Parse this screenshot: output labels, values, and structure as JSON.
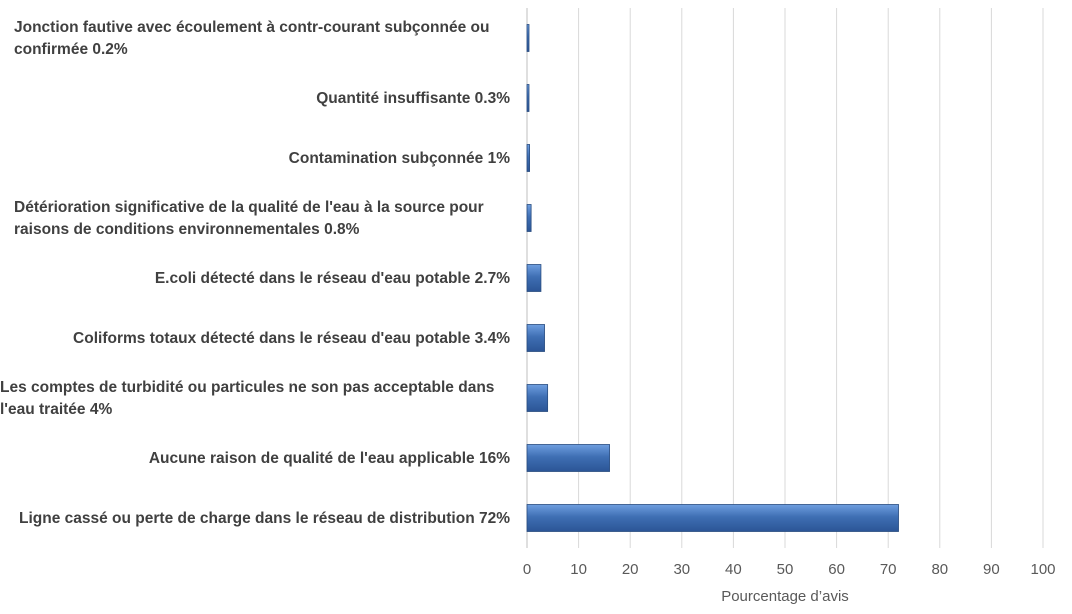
{
  "chart_data": {
    "type": "bar",
    "orientation": "horizontal",
    "categories": [
      [
        "Jonction fautive avec écoulement à contr-courant subçonnée ou",
        "confirmée 0.2%"
      ],
      [
        "Quantité insuffisante 0.3%"
      ],
      [
        "Contamination subçonnée 1%"
      ],
      [
        "Détérioration significative de la qualité de l'eau à la source pour",
        "raisons de conditions environnementales  0.8%"
      ],
      [
        "E.coli détecté dans le réseau d'eau potable 2.7%"
      ],
      [
        "Coliforms totaux détecté dans le réseau d'eau potable  3.4%"
      ],
      [
        "Les comptes de turbidité ou particules ne son pas acceptable dans",
        "l'eau traitée 4%"
      ],
      [
        "Aucune raison de qualité de l'eau applicable 16%"
      ],
      [
        "Ligne cassé ou perte de charge dans le réseau de distribution 72%"
      ]
    ],
    "values": [
      0.2,
      0.3,
      0.5,
      0.8,
      2.7,
      3.4,
      4,
      16,
      72
    ],
    "xlabel": "Pourcentage d’avis",
    "xlim": [
      0,
      100
    ],
    "xticks": [
      "0",
      "10",
      "20",
      "30",
      "40",
      "50",
      "60",
      "70",
      "80",
      "90",
      "100"
    ],
    "grid": "vertical",
    "bar_color": "#3f6fb4",
    "bar_edge_color": "#2a4d80"
  }
}
